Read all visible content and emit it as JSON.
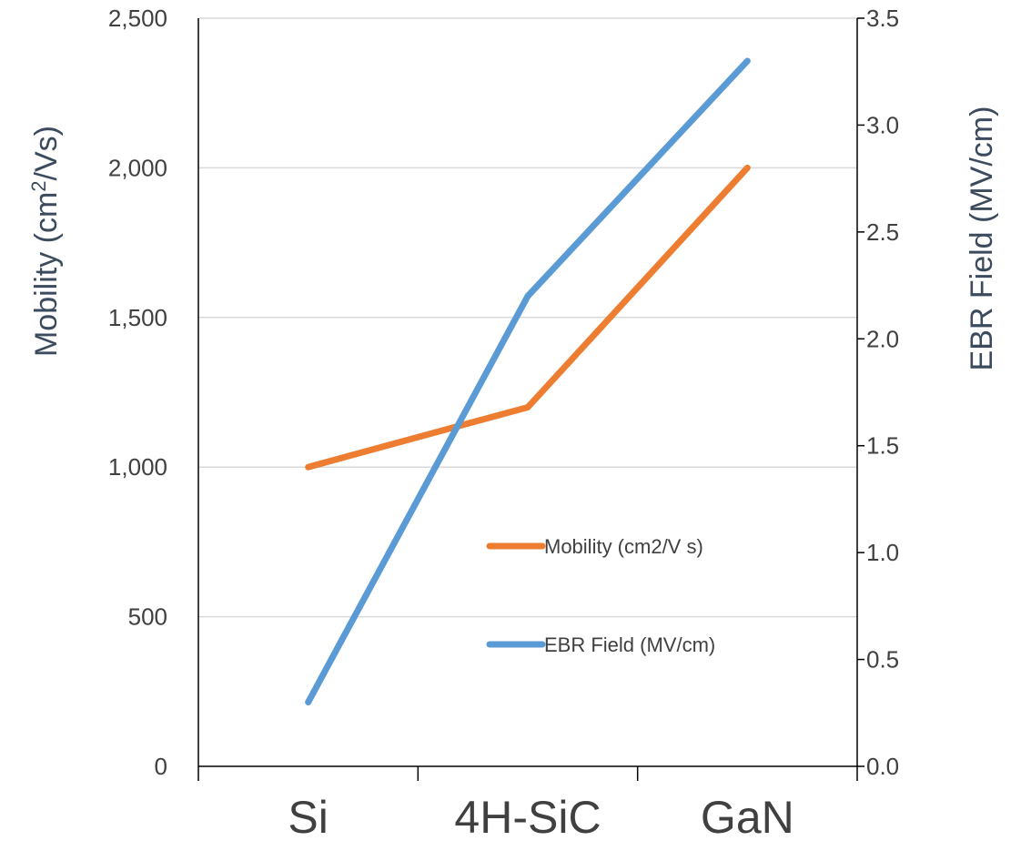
{
  "chart_data": {
    "type": "line",
    "categories": [
      "Si",
      "4H-SiC",
      "GaN"
    ],
    "series": [
      {
        "name": "Mobility (cm2/V s)",
        "axis": "left",
        "color": "#ed7d31",
        "values": [
          1000,
          1200,
          2000
        ]
      },
      {
        "name": "EBR Field (MV/cm)",
        "axis": "right",
        "color": "#5b9bd5",
        "values": [
          0.3,
          2.2,
          3.3
        ]
      }
    ],
    "ylabel_left": {
      "prefix": "Mobility (cm",
      "sup": "2",
      "suffix": "/Vs)"
    },
    "ylabel_right": "EBR Field (MV/cm)",
    "ylim_left": [
      0,
      2500
    ],
    "ylim_right": [
      0,
      3.5
    ],
    "yticks_left": [
      "0",
      "500",
      "1,000",
      "1,500",
      "2,000",
      "2,500"
    ],
    "yticks_right": [
      "0.0",
      "0.5",
      "1.0",
      "1.5",
      "2.0",
      "2.5",
      "3.0",
      "3.5"
    ],
    "grid": true,
    "legend_position": "inside-lower-right"
  }
}
